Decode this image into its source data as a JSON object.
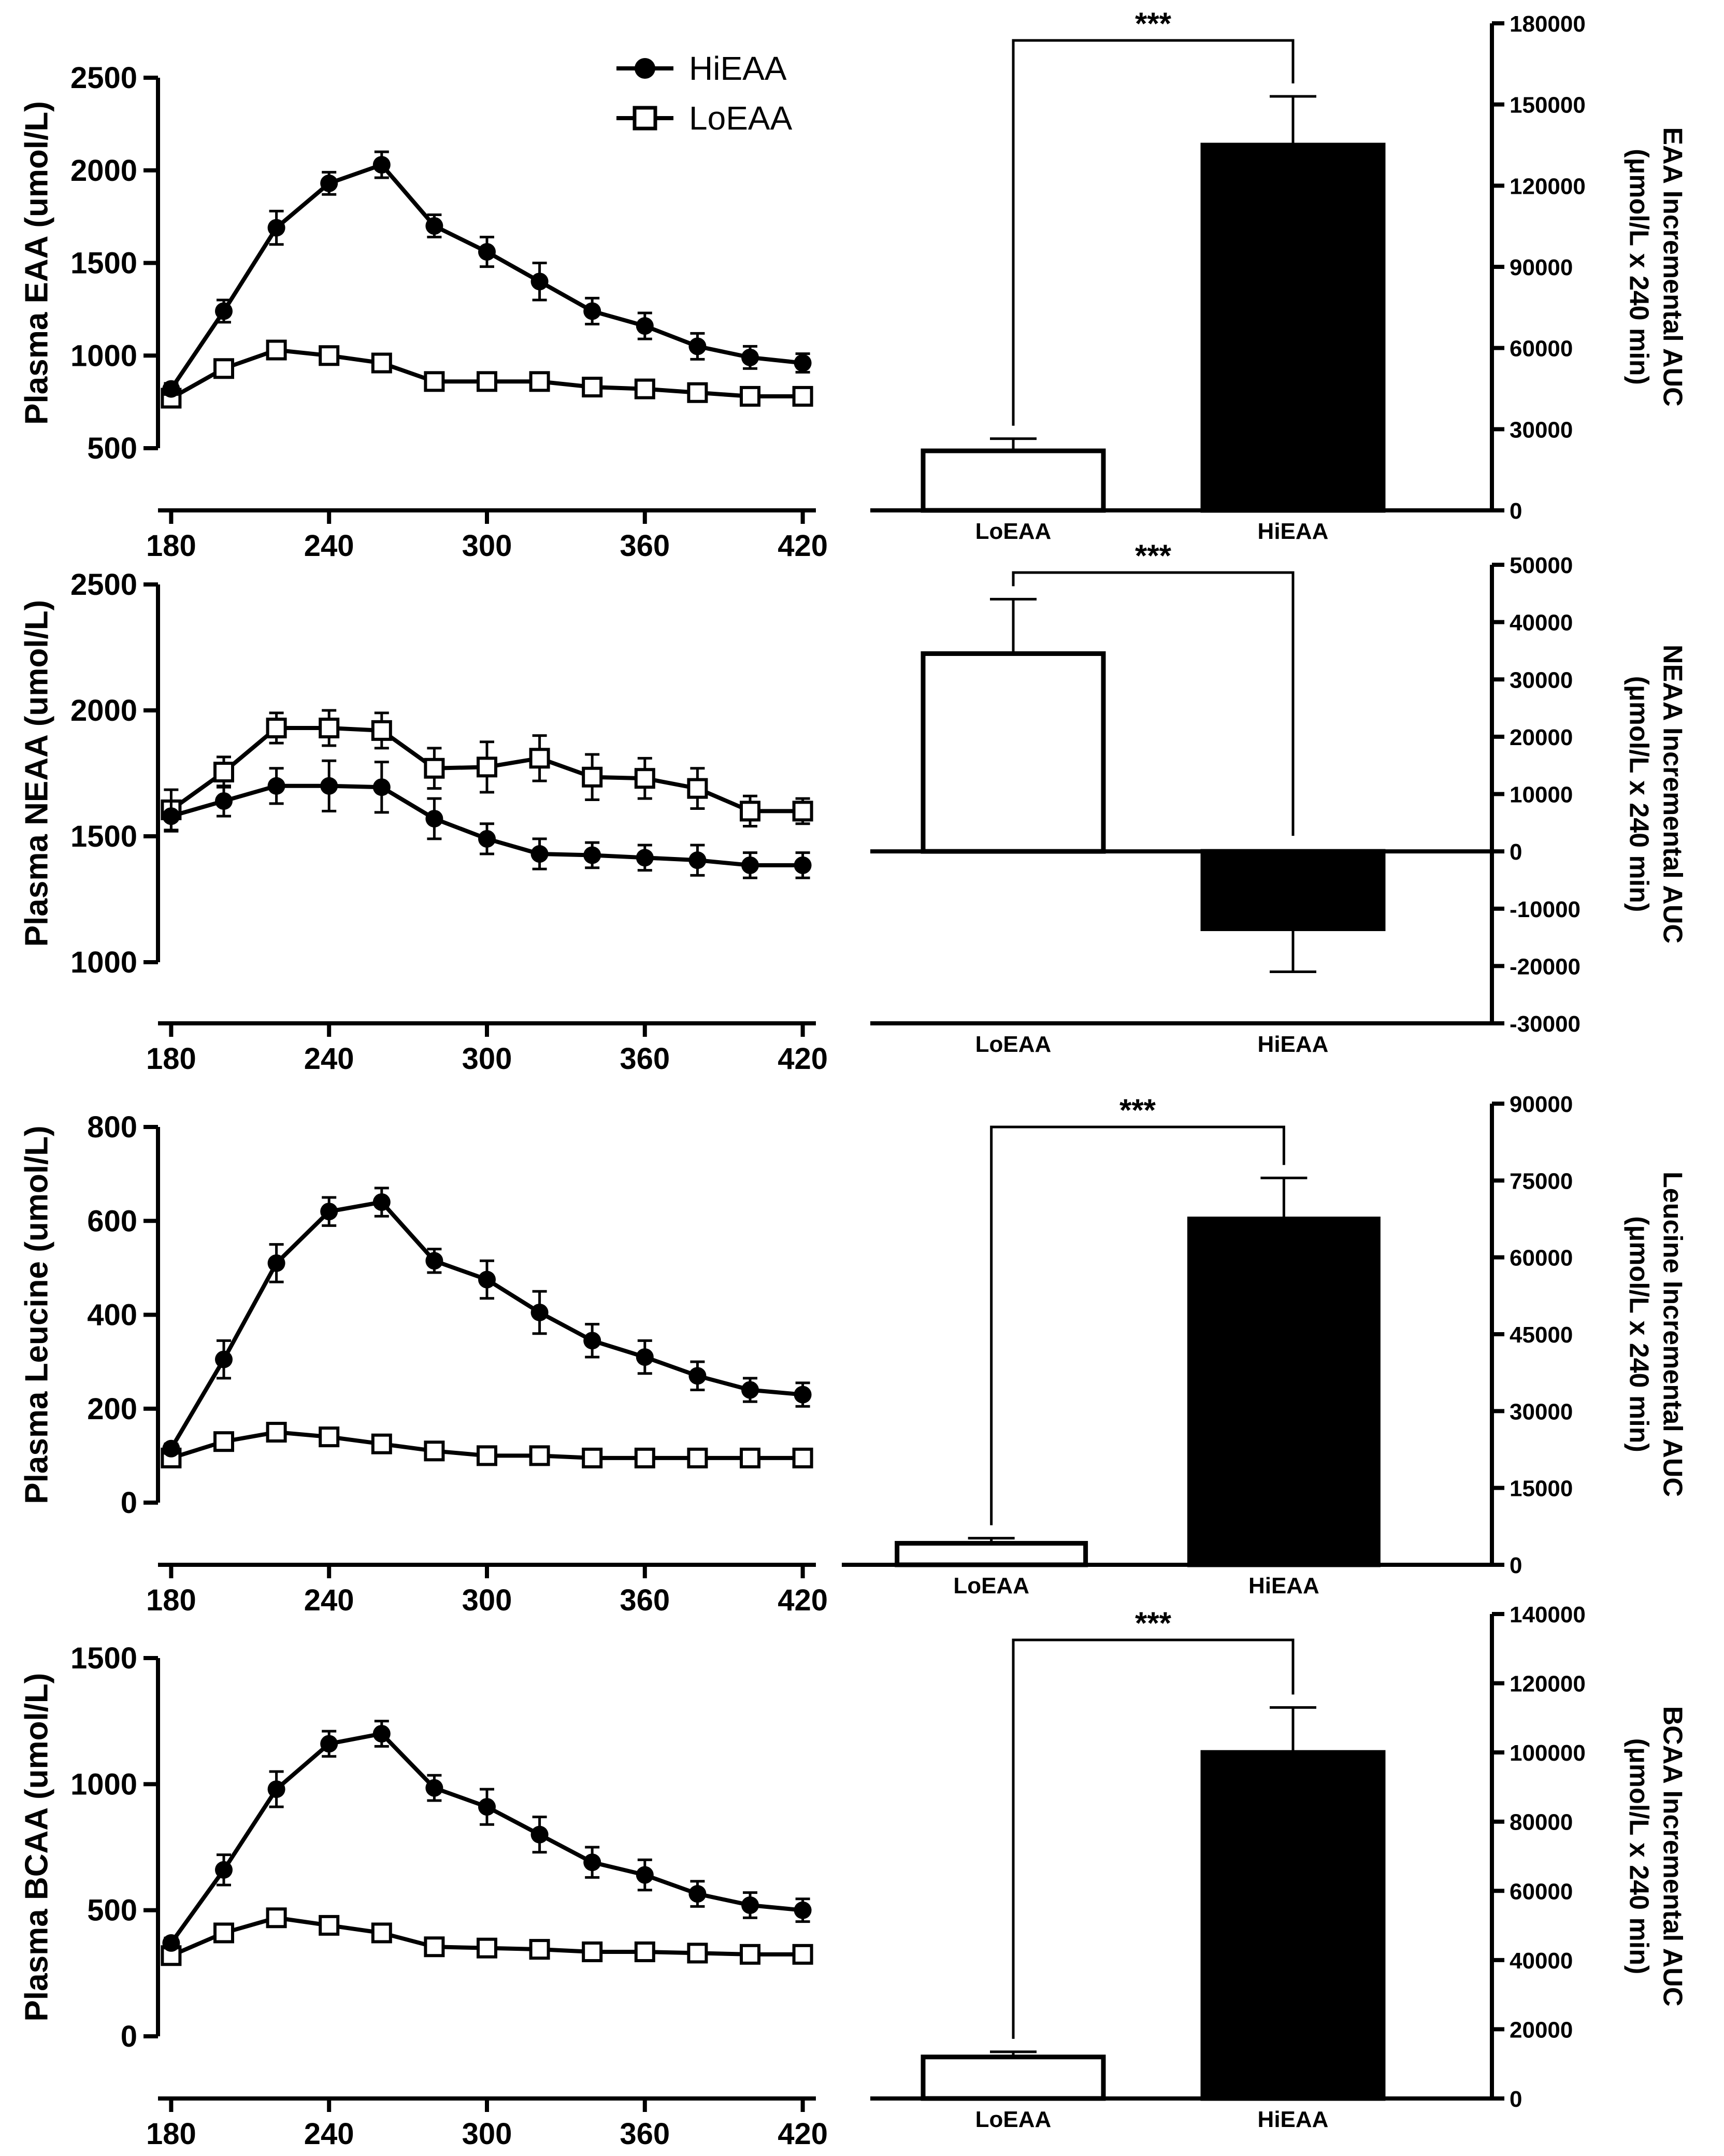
{
  "colors": {
    "ink": "#000000",
    "paper": "#ffffff",
    "hi_bar": "#000000",
    "lo_bar": "#ffffff"
  },
  "legend": {
    "items": [
      {
        "name": "HiEAA",
        "marker": "filled-circle"
      },
      {
        "name": "LoEAA",
        "marker": "open-square"
      }
    ]
  },
  "chart_data": [
    {
      "type": "line",
      "id": "eaa-time",
      "ylabel": "Plasma EAA (umol/L)",
      "xlabel": "",
      "x": [
        180,
        200,
        220,
        240,
        260,
        280,
        300,
        320,
        340,
        360,
        380,
        400,
        420
      ],
      "xticks": [
        180,
        240,
        300,
        360,
        420
      ],
      "xlim": [
        175,
        425
      ],
      "ylim": [
        500,
        2500
      ],
      "yticks": [
        500,
        1000,
        1500,
        2000,
        2500
      ],
      "series": [
        {
          "name": "HiEAA",
          "values": [
            820,
            1240,
            1690,
            1930,
            2030,
            1700,
            1560,
            1400,
            1240,
            1160,
            1050,
            990,
            960
          ],
          "errors": [
            30,
            60,
            90,
            60,
            70,
            60,
            80,
            100,
            70,
            70,
            70,
            60,
            50
          ]
        },
        {
          "name": "LoEAA",
          "values": [
            770,
            930,
            1030,
            1000,
            960,
            860,
            860,
            860,
            830,
            820,
            800,
            780,
            780
          ],
          "errors": [
            30,
            30,
            30,
            20,
            20,
            20,
            20,
            20,
            20,
            20,
            20,
            20,
            20
          ]
        }
      ]
    },
    {
      "type": "bar",
      "id": "eaa-auc",
      "categories": [
        "LoEAA",
        "HiEAA"
      ],
      "values": [
        22000,
        135000
      ],
      "errors": [
        4500,
        18000
      ],
      "ylim": [
        0,
        180000
      ],
      "yticks": [
        0,
        30000,
        60000,
        90000,
        120000,
        150000,
        180000
      ],
      "ylabel_line1": "EAA Incremental AUC",
      "ylabel_line2": "(μmol/L x 240 min)",
      "significance": "***"
    },
    {
      "type": "line",
      "id": "neaa-time",
      "ylabel": "Plasma NEAA (umol/L)",
      "xlabel": "",
      "x": [
        180,
        200,
        220,
        240,
        260,
        280,
        300,
        320,
        340,
        360,
        380,
        400,
        420
      ],
      "xticks": [
        180,
        240,
        300,
        360,
        420
      ],
      "xlim": [
        175,
        425
      ],
      "ylim": [
        1000,
        2500
      ],
      "yticks": [
        1000,
        1500,
        2000,
        2500
      ],
      "series": [
        {
          "name": "HiEAA",
          "values": [
            1580,
            1640,
            1700,
            1700,
            1695,
            1570,
            1490,
            1430,
            1425,
            1415,
            1405,
            1385,
            1385
          ],
          "errors": [
            60,
            60,
            70,
            100,
            100,
            80,
            60,
            60,
            50,
            50,
            60,
            50,
            50
          ]
        },
        {
          "name": "LoEAA",
          "values": [
            1605,
            1755,
            1930,
            1930,
            1920,
            1770,
            1775,
            1810,
            1735,
            1730,
            1690,
            1600,
            1600
          ],
          "errors": [
            80,
            60,
            60,
            70,
            70,
            80,
            100,
            90,
            90,
            80,
            80,
            60,
            50
          ]
        }
      ]
    },
    {
      "type": "bar",
      "id": "neaa-auc",
      "categories": [
        "LoEAA",
        "HiEAA"
      ],
      "values": [
        34500,
        -13500
      ],
      "errors": [
        9500,
        7500
      ],
      "ylim": [
        -30000,
        50000
      ],
      "yticks": [
        -30000,
        -20000,
        -10000,
        0,
        10000,
        20000,
        30000,
        40000,
        50000
      ],
      "ylabel_line1": "NEAA Incremental AUC",
      "ylabel_line2": "(μmol/L x 240 min)",
      "significance": "***"
    },
    {
      "type": "line",
      "id": "leucine-time",
      "ylabel": "Plasma Leucine (umol/L)",
      "xlabel": "",
      "x": [
        180,
        200,
        220,
        240,
        260,
        280,
        300,
        320,
        340,
        360,
        380,
        400,
        420
      ],
      "xticks": [
        180,
        240,
        300,
        360,
        420
      ],
      "xlim": [
        175,
        425
      ],
      "ylim": [
        0,
        800
      ],
      "yticks": [
        0,
        200,
        400,
        600,
        800
      ],
      "series": [
        {
          "name": "HiEAA",
          "values": [
            115,
            305,
            510,
            620,
            640,
            515,
            475,
            405,
            345,
            310,
            270,
            240,
            230
          ],
          "errors": [
            10,
            40,
            40,
            30,
            30,
            25,
            40,
            45,
            35,
            35,
            30,
            25,
            25
          ]
        },
        {
          "name": "LoEAA",
          "values": [
            95,
            130,
            150,
            140,
            125,
            110,
            100,
            100,
            95,
            95,
            95,
            95,
            95
          ],
          "errors": [
            8,
            10,
            10,
            10,
            8,
            8,
            8,
            8,
            6,
            6,
            6,
            6,
            6
          ]
        }
      ]
    },
    {
      "type": "bar",
      "id": "leucine-auc",
      "categories": [
        "LoEAA",
        "HiEAA"
      ],
      "values": [
        4200,
        67500
      ],
      "errors": [
        1000,
        8000
      ],
      "ylim": [
        0,
        90000
      ],
      "yticks": [
        0,
        15000,
        30000,
        45000,
        60000,
        75000,
        90000
      ],
      "ylabel_line1": "Leucine Incremental AUC",
      "ylabel_line2": "(μmol/L x 240 min)",
      "significance": "***"
    },
    {
      "type": "line",
      "id": "bcaa-time",
      "ylabel": "Plasma BCAA (umol/L)",
      "xlabel": "",
      "x": [
        180,
        200,
        220,
        240,
        260,
        280,
        300,
        320,
        340,
        360,
        380,
        400,
        420
      ],
      "xticks": [
        180,
        240,
        300,
        360,
        420
      ],
      "xlim": [
        175,
        425
      ],
      "ylim": [
        0,
        1500
      ],
      "yticks": [
        0,
        500,
        1000,
        1500
      ],
      "series": [
        {
          "name": "HiEAA",
          "values": [
            370,
            660,
            980,
            1160,
            1200,
            985,
            910,
            800,
            690,
            640,
            565,
            520,
            500
          ],
          "errors": [
            20,
            60,
            70,
            50,
            50,
            50,
            70,
            70,
            60,
            60,
            50,
            50,
            45
          ]
        },
        {
          "name": "LoEAA",
          "values": [
            320,
            410,
            470,
            440,
            410,
            355,
            350,
            345,
            335,
            335,
            330,
            325,
            325
          ],
          "errors": [
            15,
            20,
            20,
            15,
            15,
            15,
            15,
            15,
            12,
            12,
            12,
            12,
            12
          ]
        }
      ]
    },
    {
      "type": "bar",
      "id": "bcaa-auc",
      "categories": [
        "LoEAA",
        "HiEAA"
      ],
      "values": [
        12000,
        100000
      ],
      "errors": [
        1500,
        13000
      ],
      "ylim": [
        0,
        140000
      ],
      "yticks": [
        0,
        20000,
        40000,
        60000,
        80000,
        100000,
        120000,
        140000
      ],
      "ylabel_line1": "BCAA Incremental AUC",
      "ylabel_line2": "(μmol/L x 240 min)",
      "significance": "***"
    }
  ]
}
